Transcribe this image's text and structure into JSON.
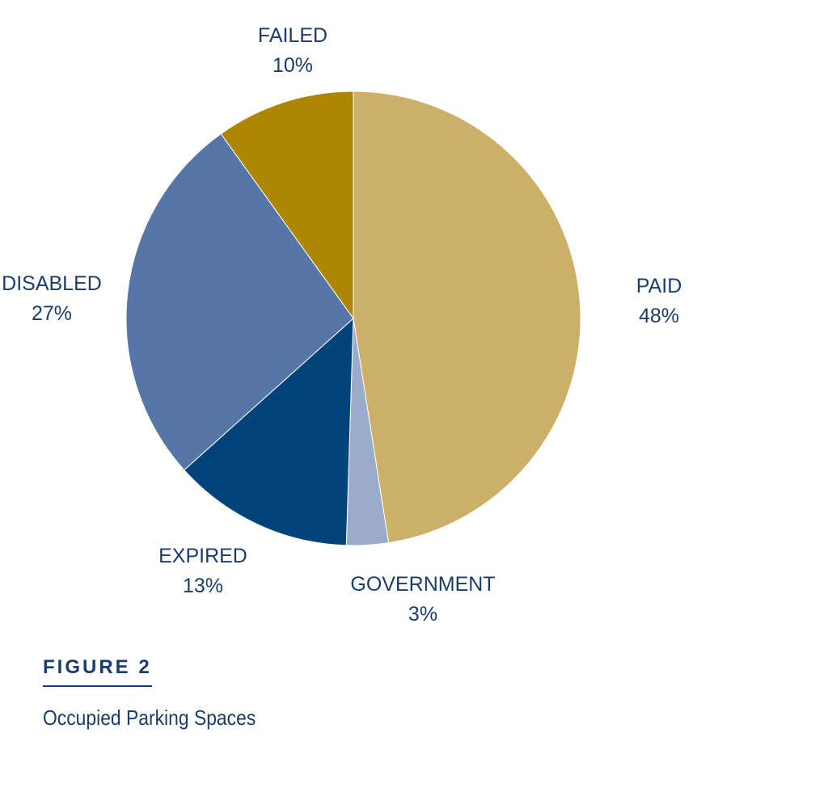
{
  "chart_data": {
    "type": "pie",
    "slices": [
      {
        "name": "PAID",
        "value": 48,
        "label": "48%",
        "color": "#ccaf69"
      },
      {
        "name": "GOVERNMENT",
        "value": 3,
        "label": "3%",
        "color": "#9baccb"
      },
      {
        "name": "EXPIRED",
        "value": 13,
        "label": "13%",
        "color": "#02437a"
      },
      {
        "name": "DISABLED",
        "value": 27,
        "label": "27%",
        "color": "#5677a5"
      },
      {
        "name": "FAILED",
        "value": 10,
        "label": "10%",
        "color": "#ae8605"
      }
    ],
    "start_angle": "12 o'clock",
    "direction": "clockwise",
    "legend": "none",
    "figure_number": "FIGURE 2",
    "title": "Occupied Parking Spaces"
  }
}
